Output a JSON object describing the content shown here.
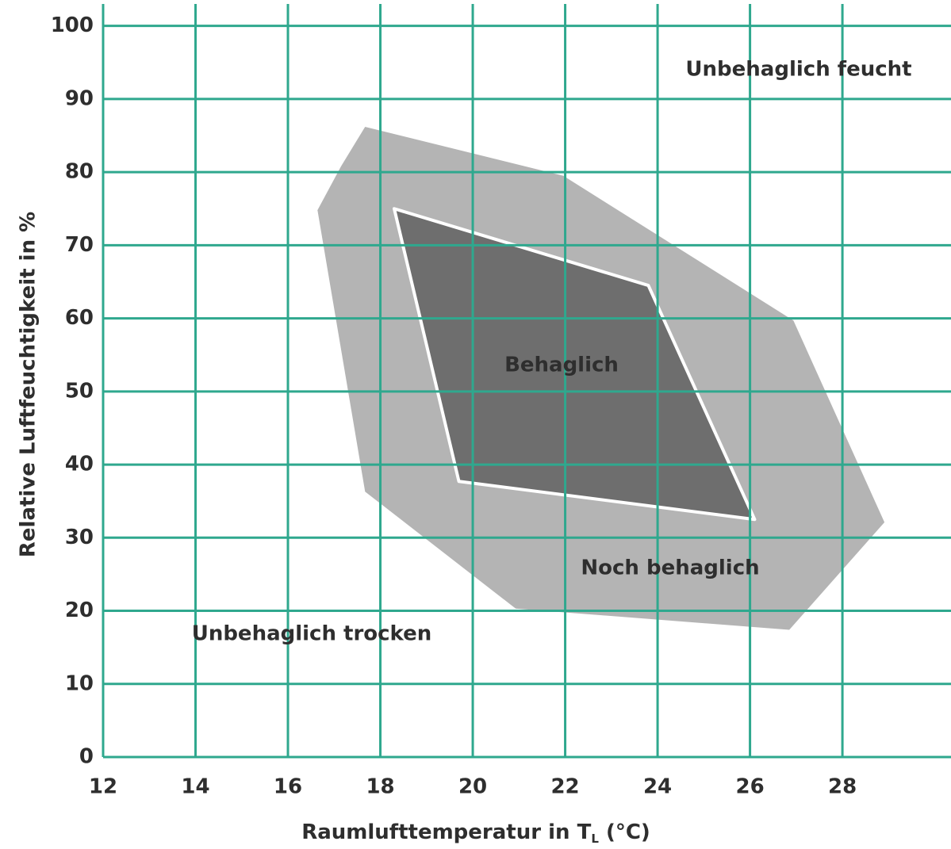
{
  "chart_data": {
    "type": "polygon",
    "x_label_main": "Raumlufttemperatur in T",
    "x_label_sub": "L",
    "x_label_unit": " (°C)",
    "y_label": "Relative Luftfeuchtigkeit in %",
    "xlim": [
      12,
      30.35
    ],
    "ylim": [
      0,
      103
    ],
    "xticks": [
      12,
      14,
      16,
      18,
      20,
      22,
      24,
      26,
      28
    ],
    "yticks": [
      0,
      10,
      20,
      30,
      40,
      50,
      60,
      70,
      80,
      90,
      100
    ],
    "grid": true,
    "grid_color": "#2fa88e",
    "series": [
      {
        "name": "Noch behaglich",
        "color": "#b4b4b4",
        "x": [
          17.67,
          21.96,
          26.94,
          28.91,
          26.85,
          20.93,
          17.67,
          16.64,
          17.15
        ],
        "values": [
          86.2,
          79.5,
          59.7,
          32.1,
          17.4,
          20.3,
          36.3,
          74.8,
          80.8
        ]
      },
      {
        "name": "Behaglich",
        "color": "#6e6e6e",
        "x": [
          18.3,
          23.8,
          26.1,
          19.7
        ],
        "values": [
          75,
          64.5,
          32.5,
          37.7
        ]
      }
    ],
    "annotations": [
      "Unbehaglich feucht",
      "Unbehaglich trocken"
    ]
  }
}
